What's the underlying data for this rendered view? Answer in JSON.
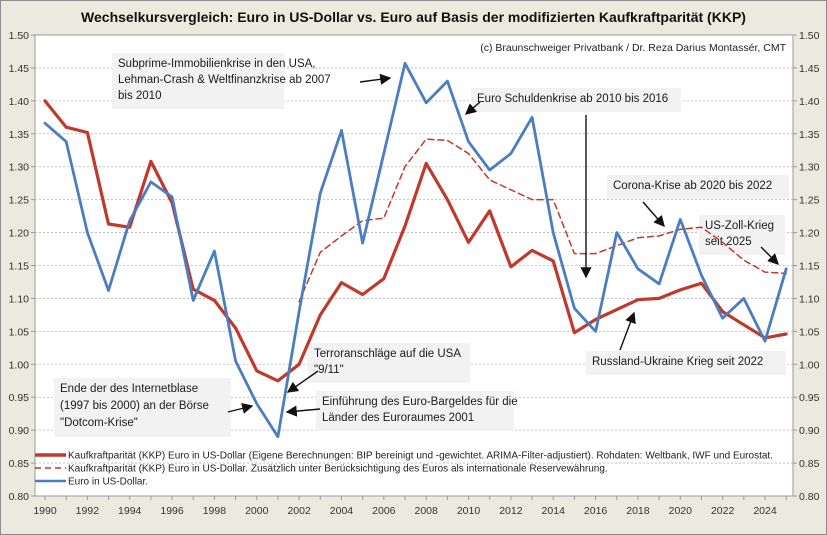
{
  "chart_data": {
    "type": "line",
    "title": "Wechselkursvergleich: Euro in US-Dollar vs. Euro auf Basis der modifizierten Kaufkraftparität (KKP)",
    "credit": "(c) Braunschweiger Privatbank / Dr. Reza Darius Montassér, CMT",
    "xlabel": "",
    "ylabel": "",
    "xlim": [
      1989.5,
      2025.8
    ],
    "ylim": [
      0.8,
      1.5
    ],
    "grid": true,
    "legend_position": "bottom-left",
    "x_ticks": [
      "1990",
      "1992",
      "1994",
      "1996",
      "1998",
      "2000",
      "2002",
      "2004",
      "2006",
      "2008",
      "2010",
      "2012",
      "2014",
      "2016",
      "2018",
      "2020",
      "2022",
      "2024"
    ],
    "y_ticks": [
      "1.50",
      "1.45",
      "1.40",
      "1.35",
      "1.30",
      "1.25",
      "1.20",
      "1.15",
      "1.10",
      "1.05",
      "1.00",
      "0.95",
      "0.90",
      "0.85",
      "0.80"
    ],
    "series": [
      {
        "name": "Kaufkraftparität (KKP) Euro in US-Dollar (Eigene Berechnungen: BIP bereinigt und -gewichtet. ARIMA-Filter-adjustiert). Rohdaten: Weltbank, IWF und Eurostat.",
        "style": "solid-thick",
        "color": "#C0392B",
        "x": [
          1990,
          1991,
          1992,
          1993,
          1994,
          1995,
          1996,
          1997,
          1998,
          1999,
          2000,
          2001,
          2002,
          2003,
          2004,
          2005,
          2006,
          2007,
          2008,
          2009,
          2010,
          2011,
          2012,
          2013,
          2014,
          2015,
          2016,
          2017,
          2018,
          2019,
          2020,
          2021,
          2022,
          2023,
          2024,
          2025
        ],
        "values": [
          1.4,
          1.36,
          1.352,
          1.213,
          1.208,
          1.308,
          1.245,
          1.114,
          1.097,
          1.055,
          0.99,
          0.975,
          1.0,
          1.075,
          1.124,
          1.106,
          1.13,
          1.21,
          1.305,
          1.25,
          1.185,
          1.233,
          1.148,
          1.173,
          1.157,
          1.048,
          1.068,
          1.083,
          1.098,
          1.1,
          1.113,
          1.123,
          1.08,
          1.06,
          1.04,
          1.046
        ]
      },
      {
        "name": "Kaufkraftparität (KKP) Euro in US-Dollar. Zusätzlich unter Berücksichtigung des Euros als internationale Reservewährung.",
        "style": "dashed",
        "color": "#C0392B",
        "x": [
          2002,
          2003,
          2004,
          2005,
          2006,
          2007,
          2008,
          2009,
          2010,
          2011,
          2012,
          2013,
          2014,
          2015,
          2016,
          2017,
          2018,
          2019,
          2020,
          2021,
          2022,
          2023,
          2024,
          2025
        ],
        "values": [
          1.095,
          1.17,
          1.195,
          1.218,
          1.222,
          1.3,
          1.342,
          1.34,
          1.32,
          1.28,
          1.265,
          1.25,
          1.25,
          1.168,
          1.168,
          1.18,
          1.192,
          1.195,
          1.205,
          1.208,
          1.185,
          1.158,
          1.14,
          1.138
        ]
      },
      {
        "name": "Euro in US-Dollar.",
        "style": "solid",
        "color": "#4A7EC0",
        "x": [
          1990,
          1991,
          1992,
          1993,
          1994,
          1995,
          1996,
          1997,
          1998,
          1999,
          2000,
          2001,
          2002,
          2003,
          2004,
          2005,
          2006,
          2007,
          2008,
          2009,
          2010,
          2011,
          2012,
          2013,
          2014,
          2015,
          2016,
          2017,
          2018,
          2019,
          2020,
          2021,
          2022,
          2023,
          2024,
          2025
        ],
        "values": [
          1.366,
          1.338,
          1.2,
          1.112,
          1.218,
          1.277,
          1.254,
          1.097,
          1.172,
          1.005,
          0.94,
          0.89,
          1.08,
          1.26,
          1.355,
          1.184,
          1.32,
          1.457,
          1.397,
          1.43,
          1.338,
          1.295,
          1.32,
          1.375,
          1.2,
          1.085,
          1.05,
          1.2,
          1.145,
          1.122,
          1.22,
          1.135,
          1.07,
          1.1,
          1.035,
          1.145
        ]
      }
    ],
    "annotations": [
      {
        "id": "subprime",
        "lines": [
          "Subprime-Immobilienkrise  in den USA,",
          "Lehman-Crash & Weltfinanzkrise ab 2007",
          "bis 2010"
        ],
        "target_x": 2007,
        "target_y": 1.45
      },
      {
        "id": "euro-schulden",
        "lines": [
          "Euro Schuldenkrise ab 2010 bis 2016"
        ],
        "target_x": 2010,
        "target_y": 1.33
      },
      {
        "id": "corona",
        "lines": [
          "Corona-Krise ab 2020 bis 2022"
        ],
        "target_x": 2020,
        "target_y": 1.2
      },
      {
        "id": "us-zoll",
        "lines": [
          "US-Zoll-Krieg",
          "seit 2025"
        ],
        "target_x": 2025,
        "target_y": 1.15
      },
      {
        "id": "russland-ukraine",
        "lines": [
          "Russland-Ukraine Krieg seit 2022"
        ],
        "target_x": 2022,
        "target_y": 1.07
      },
      {
        "id": "terror",
        "lines": [
          "Terroranschläge auf die USA",
          "\"9/11\""
        ],
        "target_x": 2001,
        "target_y": 0.95
      },
      {
        "id": "euro-bargeld",
        "lines": [
          "Einführung des Euro-Bargeldes für die",
          "Länder des Euroraumes 2001"
        ],
        "target_x": 2001,
        "target_y": 0.91
      },
      {
        "id": "dotcom",
        "lines": [
          "Ende der des Internetblase",
          "(1997 bis 2000) an der Börse",
          "\"Dotcom-Krise\""
        ],
        "target_x": 2000,
        "target_y": 0.92
      }
    ]
  }
}
